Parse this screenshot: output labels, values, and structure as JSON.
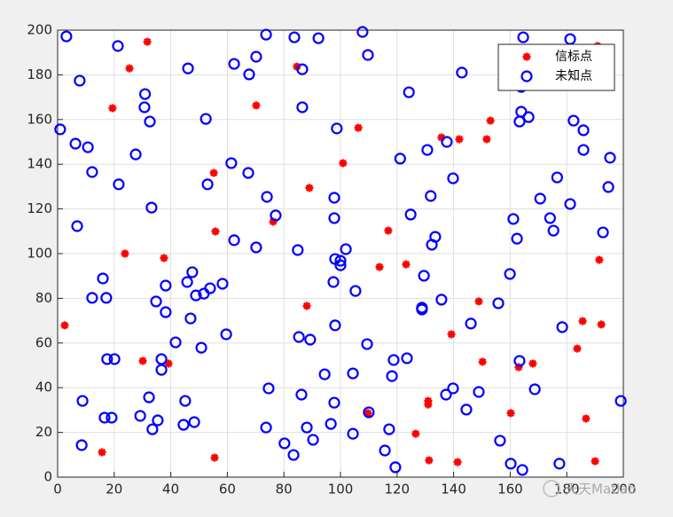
{
  "chart_data": {
    "type": "scatter",
    "xlim": [
      0,
      200
    ],
    "ylim": [
      0,
      200
    ],
    "xticks": [
      0,
      20,
      40,
      60,
      80,
      100,
      120,
      140,
      160,
      180,
      200
    ],
    "yticks": [
      0,
      20,
      40,
      60,
      80,
      100,
      120,
      140,
      160,
      180,
      200
    ],
    "grid": true,
    "legend": "northeast",
    "watermark": "天天Matlab",
    "series": [
      {
        "name": "信标点",
        "color": "#ff0000",
        "marker": "star",
        "x": [
          2.5,
          31.7,
          25.4,
          19.4,
          23.8,
          37.6,
          39.2,
          30.1,
          15.7,
          55.5,
          55.2,
          55.8,
          70.2,
          76.2,
          84.6,
          89.0,
          88.1,
          100.9,
          106.3,
          113.8,
          116.9,
          123.2,
          109.7,
          126.6,
          131.0,
          131.0,
          131.3,
          135.7,
          142.0,
          139.2,
          141.4,
          148.9,
          150.2,
          151.7,
          153.0,
          160.2,
          163.0,
          168.0,
          183.7,
          185.6,
          186.8,
          190.0,
          191.5,
          192.2,
          190.9
        ],
        "values": [
          67.9,
          194.8,
          182.9,
          165.1,
          100.0,
          98.0,
          50.8,
          52.0,
          11.1,
          8.7,
          136.1,
          109.9,
          166.3,
          114.3,
          183.7,
          129.4,
          76.6,
          140.5,
          156.3,
          94.0,
          110.3,
          95.2,
          28.6,
          19.4,
          34.1,
          32.5,
          7.5,
          152.0,
          151.2,
          63.9,
          6.7,
          78.6,
          51.6,
          151.2,
          159.5,
          28.6,
          49.2,
          50.8,
          57.5,
          69.8,
          26.2,
          7.1,
          97.2,
          68.3,
          192.9
        ]
      },
      {
        "name": "未知点",
        "color": "#0000ff",
        "marker": "circle",
        "x": [
          3.1,
          7.8,
          0.9,
          6.3,
          10.7,
          12.2,
          21.3,
          30.9,
          30.7,
          32.6,
          27.6,
          21.6,
          33.2,
          6.9,
          16.0,
          12.2,
          17.2,
          38.2,
          34.8,
          38.2,
          47.6,
          45.8,
          48.9,
          51.7,
          53.9,
          58.3,
          47.0,
          41.7,
          50.8,
          59.6,
          17.5,
          20.1,
          36.7,
          36.7,
          32.3,
          8.8,
          16.6,
          19.1,
          29.2,
          35.4,
          33.5,
          8.5,
          45.1,
          44.5,
          48.3,
          46.1,
          52.4,
          62.4,
          67.7,
          70.2,
          73.7,
          61.4,
          67.4,
          53.0,
          74.0,
          77.1,
          62.4,
          70.2,
          83.7,
          86.5,
          86.5,
          92.2,
          107.8,
          109.7,
          98.7,
          97.8,
          97.8,
          84.9,
          98.1,
          100.0,
          100.0,
          101.9,
          97.5,
          105.3,
          85.3,
          89.3,
          98.1,
          109.4,
          74.6,
          86.2,
          94.4,
          97.8,
          104.4,
          73.7,
          88.1,
          90.3,
          96.6,
          80.2,
          83.4,
          104.4,
          110.0,
          118.8,
          123.5,
          118.2,
          117.2,
          115.7,
          119.4,
          124.2,
          121.1,
          130.7,
          131.9,
          124.8,
          133.5,
          132.3,
          129.5,
          128.8,
          128.8,
          135.7,
          137.6,
          139.8,
          142.9,
          146.1,
          139.8,
          137.3,
          144.5,
          148.9,
          155.8,
          156.4,
          159.9,
          161.1,
          162.4,
          163.9,
          163.9,
          163.3,
          166.5,
          164.6,
          163.3,
          160.2,
          164.3,
          168.7,
          170.6,
          174.1,
          175.3,
          176.6,
          178.4,
          177.4,
          181.2,
          181.2,
          182.4,
          185.9,
          185.9,
          195.3,
          194.7,
          192.8,
          199.1
        ],
        "values": [
          197.2,
          177.4,
          155.6,
          149.2,
          147.6,
          136.5,
          192.9,
          171.4,
          165.5,
          159.1,
          144.4,
          131.0,
          120.6,
          112.3,
          88.9,
          80.2,
          80.2,
          85.7,
          78.6,
          73.8,
          91.7,
          87.3,
          81.3,
          82.1,
          84.5,
          86.5,
          71.0,
          60.3,
          57.9,
          63.9,
          52.8,
          52.8,
          52.8,
          48.0,
          35.7,
          34.1,
          26.6,
          26.6,
          27.4,
          25.4,
          21.4,
          14.3,
          34.1,
          23.4,
          24.6,
          182.9,
          160.3,
          184.9,
          180.2,
          188.1,
          198.0,
          140.5,
          136.1,
          131.0,
          125.4,
          117.1,
          106.0,
          102.8,
          196.8,
          182.5,
          165.5,
          196.4,
          199.2,
          188.9,
          156.0,
          125.0,
          115.9,
          101.6,
          97.6,
          94.8,
          96.8,
          102.0,
          87.3,
          83.3,
          62.7,
          61.5,
          67.9,
          59.5,
          39.7,
          36.9,
          46.0,
          33.3,
          46.4,
          22.2,
          22.2,
          16.7,
          23.8,
          15.1,
          9.9,
          19.4,
          29.0,
          52.4,
          53.2,
          45.2,
          21.4,
          11.9,
          4.4,
          172.2,
          142.5,
          146.4,
          125.8,
          117.5,
          107.5,
          104.0,
          90.1,
          75.8,
          75.0,
          79.4,
          150.0,
          133.7,
          181.0,
          68.7,
          39.7,
          36.9,
          30.2,
          38.1,
          77.8,
          16.3,
          90.9,
          115.5,
          106.7,
          174.6,
          163.5,
          159.1,
          161.1,
          196.8,
          52.0,
          6.0,
          3.2,
          39.3,
          124.6,
          115.9,
          110.3,
          134.1,
          67.1,
          6.0,
          196.0,
          122.2,
          159.5,
          155.2,
          146.4,
          142.9,
          129.8,
          109.5,
          34.1
        ]
      }
    ]
  }
}
